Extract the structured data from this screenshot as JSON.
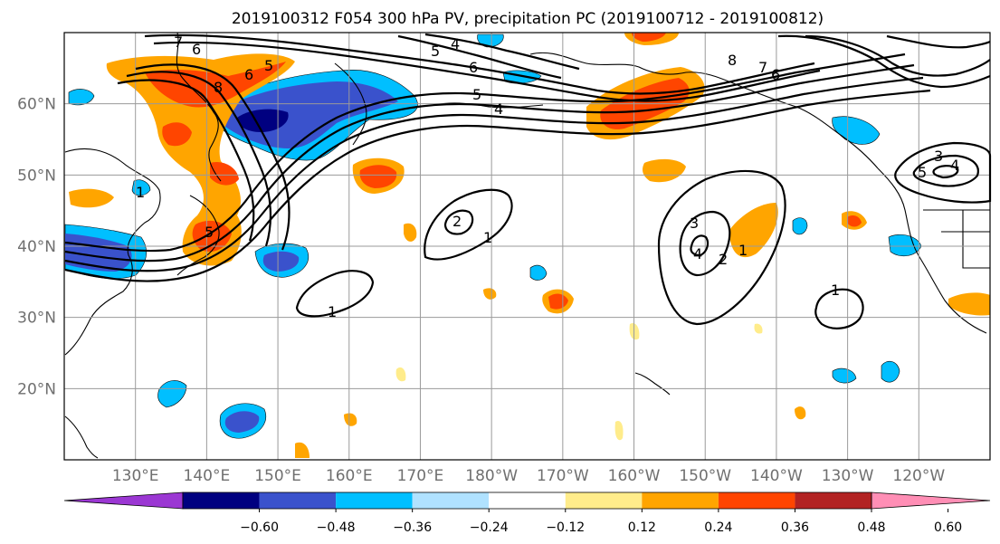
{
  "title": "2019100312 F054 300 hPa PV, precipitation PC (2019100712 - 2019100812)",
  "map": {
    "lon_range": [
      120,
      -110
    ],
    "lat_range": [
      10,
      70
    ],
    "lat_labels": [
      "20°N",
      "30°N",
      "40°N",
      "50°N",
      "60°N"
    ],
    "lon_labels": [
      "130°E",
      "140°E",
      "150°E",
      "160°E",
      "170°E",
      "180°W",
      "170°W",
      "160°W",
      "150°W",
      "140°W",
      "130°W",
      "120°W"
    ],
    "gridlines": true
  },
  "colorbar": {
    "ticks": [
      "−0.60",
      "−0.48",
      "−0.36",
      "−0.24",
      "−0.12",
      "0.12",
      "0.24",
      "0.36",
      "0.48",
      "0.60"
    ],
    "colors": [
      "#9b37d3",
      "#000080",
      "#3a52cc",
      "#00bfff",
      "#b0e2ff",
      "#ffffff",
      "#ffec8b",
      "#ffa500",
      "#ff4500",
      "#b22222",
      "#ff8eb5"
    ],
    "extend": "both"
  },
  "pv_contour_labels": [
    "1",
    "2",
    "3",
    "4",
    "5",
    "6",
    "7",
    "8"
  ]
}
